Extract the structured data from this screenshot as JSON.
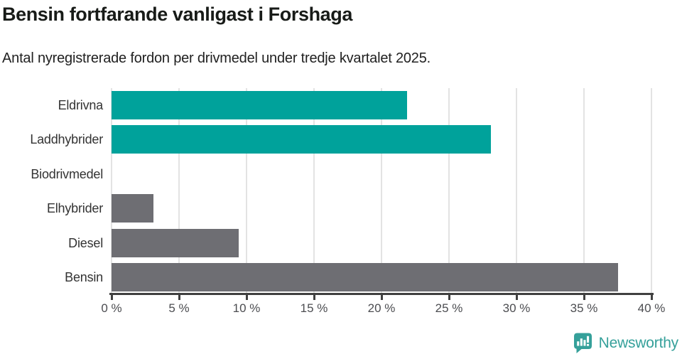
{
  "header": {
    "title": "Bensin fortfarande vanligast i Forshaga",
    "subtitle": "Antal nyregistrerade fordon per drivmedel under tredje kvartalet 2025."
  },
  "chart_data": {
    "type": "bar",
    "orientation": "horizontal",
    "title": "Bensin fortfarande vanligast i Forshaga",
    "subtitle": "Antal nyregistrerade fordon per drivmedel under tredje kvartalet 2025.",
    "categories": [
      "Eldrivna",
      "Laddhybrider",
      "Biodrivmedel",
      "Elhybrider",
      "Diesel",
      "Bensin"
    ],
    "values": [
      21.9,
      28.1,
      0,
      3.1,
      9.4,
      37.5
    ],
    "bar_colors": [
      "#00A29B",
      "#00A29B",
      "#00A29B",
      "#6E6E73",
      "#6E6E73",
      "#6E6E73"
    ],
    "xlabel": "",
    "ylabel": "",
    "xlim": [
      0,
      40
    ],
    "x_tick_values": [
      0,
      5,
      10,
      15,
      20,
      25,
      30,
      35,
      40
    ],
    "x_tick_labels": [
      "0 %",
      "5 %",
      "10 %",
      "15 %",
      "20 %",
      "25 %",
      "30 %",
      "35 %",
      "40 %"
    ],
    "grid": "vertical",
    "legend": "none"
  },
  "colors": {
    "teal": "#00A29B",
    "gray": "#6E6E73",
    "gridline": "#e3e3e3",
    "axis": "#404040",
    "logo_teal": "#35a09a"
  },
  "footer": {
    "logo_text": "Newsworthy",
    "logo_icon": "bar-chart-speech-bubble-icon"
  }
}
